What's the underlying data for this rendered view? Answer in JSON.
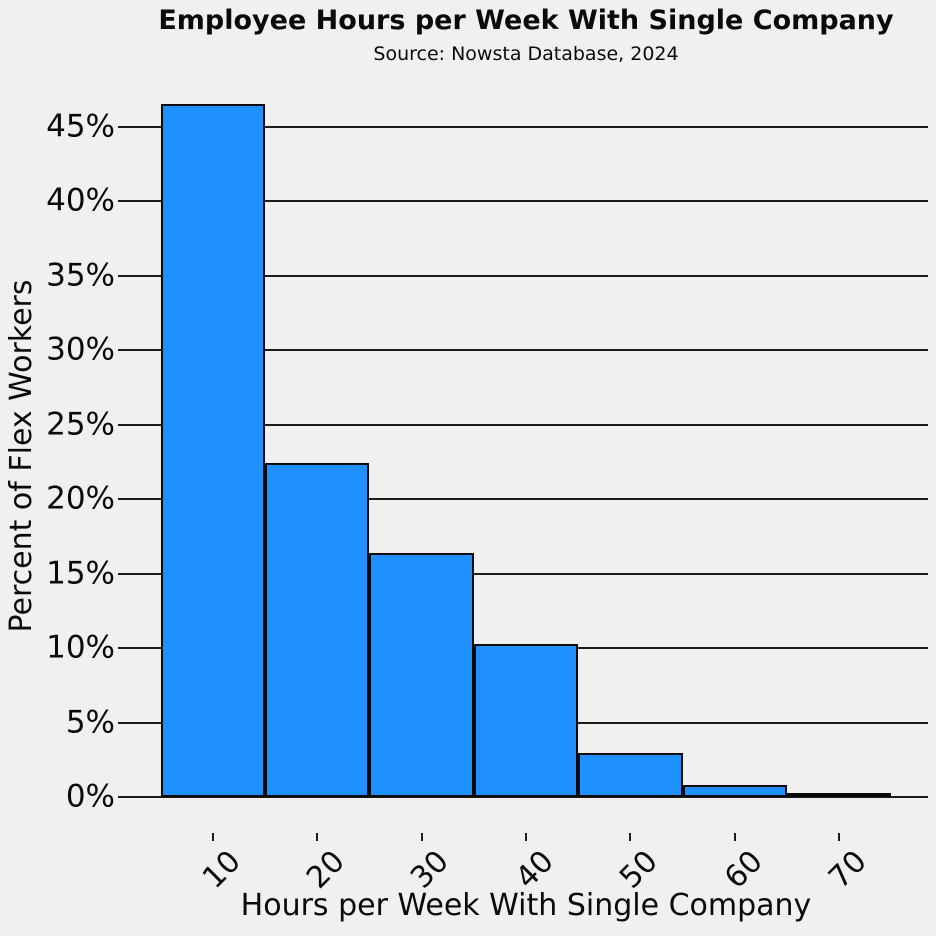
{
  "chart_data": {
    "type": "bar",
    "subtype": "histogram",
    "title": "Employee Hours per Week With Single Company",
    "subtitle": "Source: Nowsta Database, 2024",
    "xlabel": "Hours per Week With Single Company",
    "ylabel": "Percent of Flex Workers",
    "categories": [
      "10",
      "20",
      "30",
      "40",
      "50",
      "60",
      "70"
    ],
    "values": [
      46.5,
      22.4,
      16.4,
      10.3,
      3.0,
      0.8,
      0.3
    ],
    "value_unit": "%",
    "ytick_labels": [
      "0%",
      "5%",
      "10%",
      "15%",
      "20%",
      "25%",
      "30%",
      "35%",
      "40%",
      "45%"
    ],
    "ytick_values": [
      0,
      5,
      10,
      15,
      20,
      25,
      30,
      35,
      40,
      45
    ],
    "ylim": [
      -2.4,
      48.8
    ],
    "grid": "horizontal",
    "legend": "none",
    "x_tick_rotation_deg": 45,
    "colors": {
      "bar_fill": "#1E90FF",
      "bar_edge": "#0A0A0A",
      "background": "#F0F0F0",
      "grid_line": "#1B1B1B",
      "text": "#0A0A0A"
    }
  }
}
